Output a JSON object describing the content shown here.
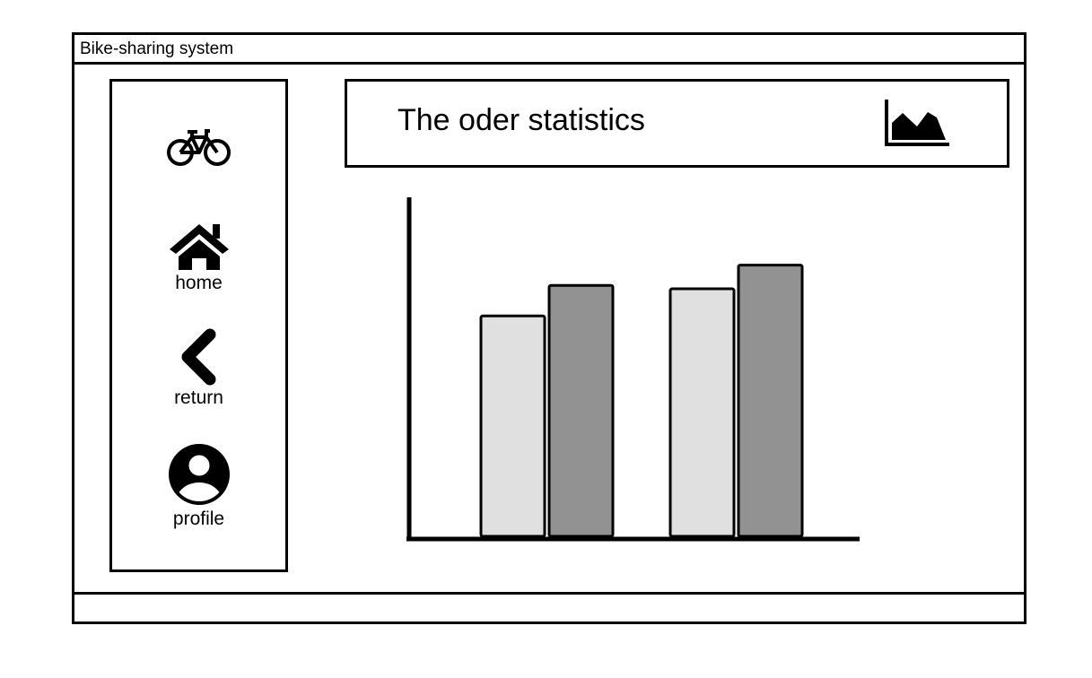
{
  "window": {
    "title": "Bike-sharing system"
  },
  "sidebar": {
    "logo_icon": "bicycle-icon",
    "items": [
      {
        "label": "home",
        "icon": "home-icon"
      },
      {
        "label": "return",
        "icon": "chevron-left-icon"
      },
      {
        "label": "profile",
        "icon": "user-avatar-icon"
      }
    ]
  },
  "header": {
    "title": "The oder statistics",
    "icon": "area-chart-icon"
  },
  "chart_data": {
    "type": "bar",
    "categories": [
      "",
      ""
    ],
    "series": [
      {
        "values": [
          65,
          73
        ],
        "color": "#e0e0e0"
      },
      {
        "values": [
          74,
          80
        ],
        "color": "#929292"
      }
    ],
    "ylim": [
      0,
      100
    ],
    "title": "",
    "xlabel": "",
    "ylabel": "",
    "grid": false
  }
}
